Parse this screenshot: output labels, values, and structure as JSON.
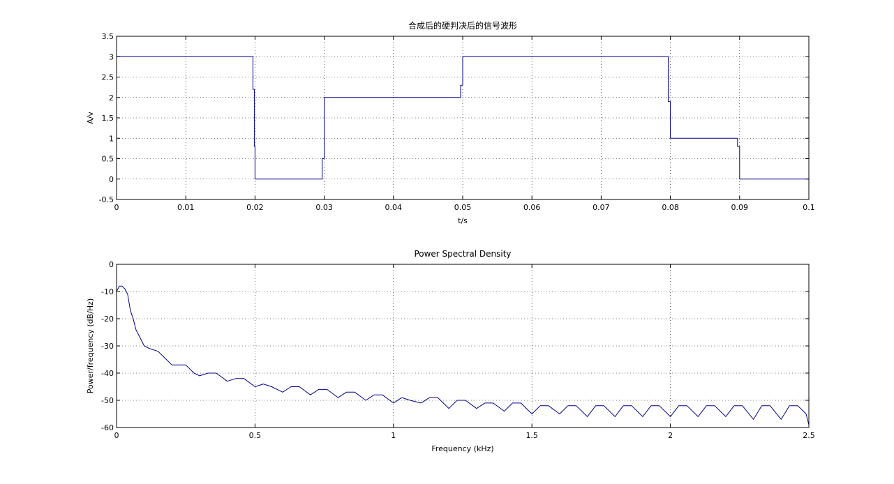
{
  "chart_data": [
    {
      "type": "line",
      "title": "合成后的硬判决后的信号波形",
      "xlabel": "t/s",
      "ylabel": "A/v",
      "xlim": [
        0,
        0.1
      ],
      "ylim": [
        -0.5,
        3.5
      ],
      "grid": true,
      "xticks": [
        0,
        0.01,
        0.02,
        0.03,
        0.04,
        0.05,
        0.06,
        0.07,
        0.08,
        0.09,
        0.1
      ],
      "xtick_labels": [
        "0",
        "0.01",
        "0.02",
        "0.03",
        "0.04",
        "0.05",
        "0.06",
        "0.07",
        "0.08",
        "0.09",
        "0.1"
      ],
      "yticks": [
        -0.5,
        0,
        0.5,
        1,
        1.5,
        2,
        2.5,
        3,
        3.5
      ],
      "ytick_labels": [
        "-0.5",
        "0",
        "0.5",
        "1",
        "1.5",
        "2",
        "2.5",
        "3",
        "3.5"
      ],
      "series": [
        {
          "color": "#00008b",
          "x": [
            0,
            0.0197,
            0.0197,
            0.0199,
            0.0199,
            0.02,
            0.02,
            0.0297,
            0.0297,
            0.03,
            0.03,
            0.0497,
            0.0497,
            0.05,
            0.05,
            0.0797,
            0.0797,
            0.08,
            0.08,
            0.0897,
            0.0897,
            0.09,
            0.09,
            0.1
          ],
          "y": [
            3,
            3,
            2.2,
            2.2,
            0.8,
            0.8,
            0,
            0,
            0.5,
            0.5,
            2,
            2,
            2.3,
            2.3,
            3,
            3,
            1.9,
            1.9,
            1,
            1,
            0.8,
            0.8,
            0,
            0
          ]
        }
      ]
    },
    {
      "type": "line",
      "title": "Power Spectral Density",
      "xlabel": "Frequency (kHz)",
      "ylabel": "Power/frequency (dB/Hz)",
      "xlim": [
        0,
        2.5
      ],
      "ylim": [
        -60,
        0
      ],
      "grid": true,
      "xticks": [
        0,
        0.5,
        1,
        1.5,
        2,
        2.5
      ],
      "xtick_labels": [
        "0",
        "0.5",
        "1",
        "1.5",
        "2",
        "2.5"
      ],
      "yticks": [
        -60,
        -50,
        -40,
        -30,
        -20,
        -10,
        0
      ],
      "ytick_labels": [
        "-60",
        "-50",
        "-40",
        "-30",
        "-20",
        "-10",
        "0"
      ],
      "series": [
        {
          "color": "#00008b",
          "x": [
            0,
            0.01,
            0.02,
            0.03,
            0.04,
            0.05,
            0.06,
            0.07,
            0.08,
            0.1,
            0.12,
            0.15,
            0.18,
            0.2,
            0.22,
            0.25,
            0.28,
            0.3,
            0.33,
            0.36,
            0.4,
            0.43,
            0.46,
            0.5,
            0.53,
            0.56,
            0.6,
            0.63,
            0.66,
            0.7,
            0.73,
            0.76,
            0.8,
            0.83,
            0.86,
            0.9,
            0.93,
            0.96,
            1.0,
            1.03,
            1.06,
            1.1,
            1.13,
            1.16,
            1.2,
            1.23,
            1.26,
            1.3,
            1.33,
            1.36,
            1.4,
            1.43,
            1.46,
            1.5,
            1.53,
            1.56,
            1.6,
            1.63,
            1.66,
            1.7,
            1.73,
            1.76,
            1.8,
            1.83,
            1.86,
            1.9,
            1.93,
            1.96,
            2.0,
            2.03,
            2.06,
            2.1,
            2.13,
            2.16,
            2.2,
            2.23,
            2.26,
            2.3,
            2.33,
            2.36,
            2.4,
            2.43,
            2.46,
            2.49,
            2.5
          ],
          "y": [
            -10,
            -8,
            -8,
            -9,
            -11,
            -17,
            -20,
            -24,
            -26,
            -30,
            -31,
            -32,
            -35,
            -37,
            -37,
            -37,
            -40,
            -41,
            -40,
            -40,
            -43,
            -42,
            -42,
            -45,
            -44,
            -45,
            -47,
            -45,
            -45,
            -48,
            -46,
            -46,
            -49,
            -47,
            -47,
            -50,
            -48,
            -48,
            -51,
            -49,
            -50,
            -51,
            -49,
            -49,
            -53,
            -50,
            -50,
            -53,
            -51,
            -51,
            -54,
            -51,
            -51,
            -55,
            -52,
            -52,
            -55,
            -52,
            -52,
            -56,
            -52,
            -52,
            -56,
            -52,
            -52,
            -56,
            -52,
            -52,
            -56,
            -52,
            -52,
            -56,
            -52,
            -52,
            -56,
            -52,
            -52,
            -57,
            -52,
            -52,
            -57,
            -52,
            -52,
            -55,
            -59
          ]
        }
      ]
    }
  ]
}
